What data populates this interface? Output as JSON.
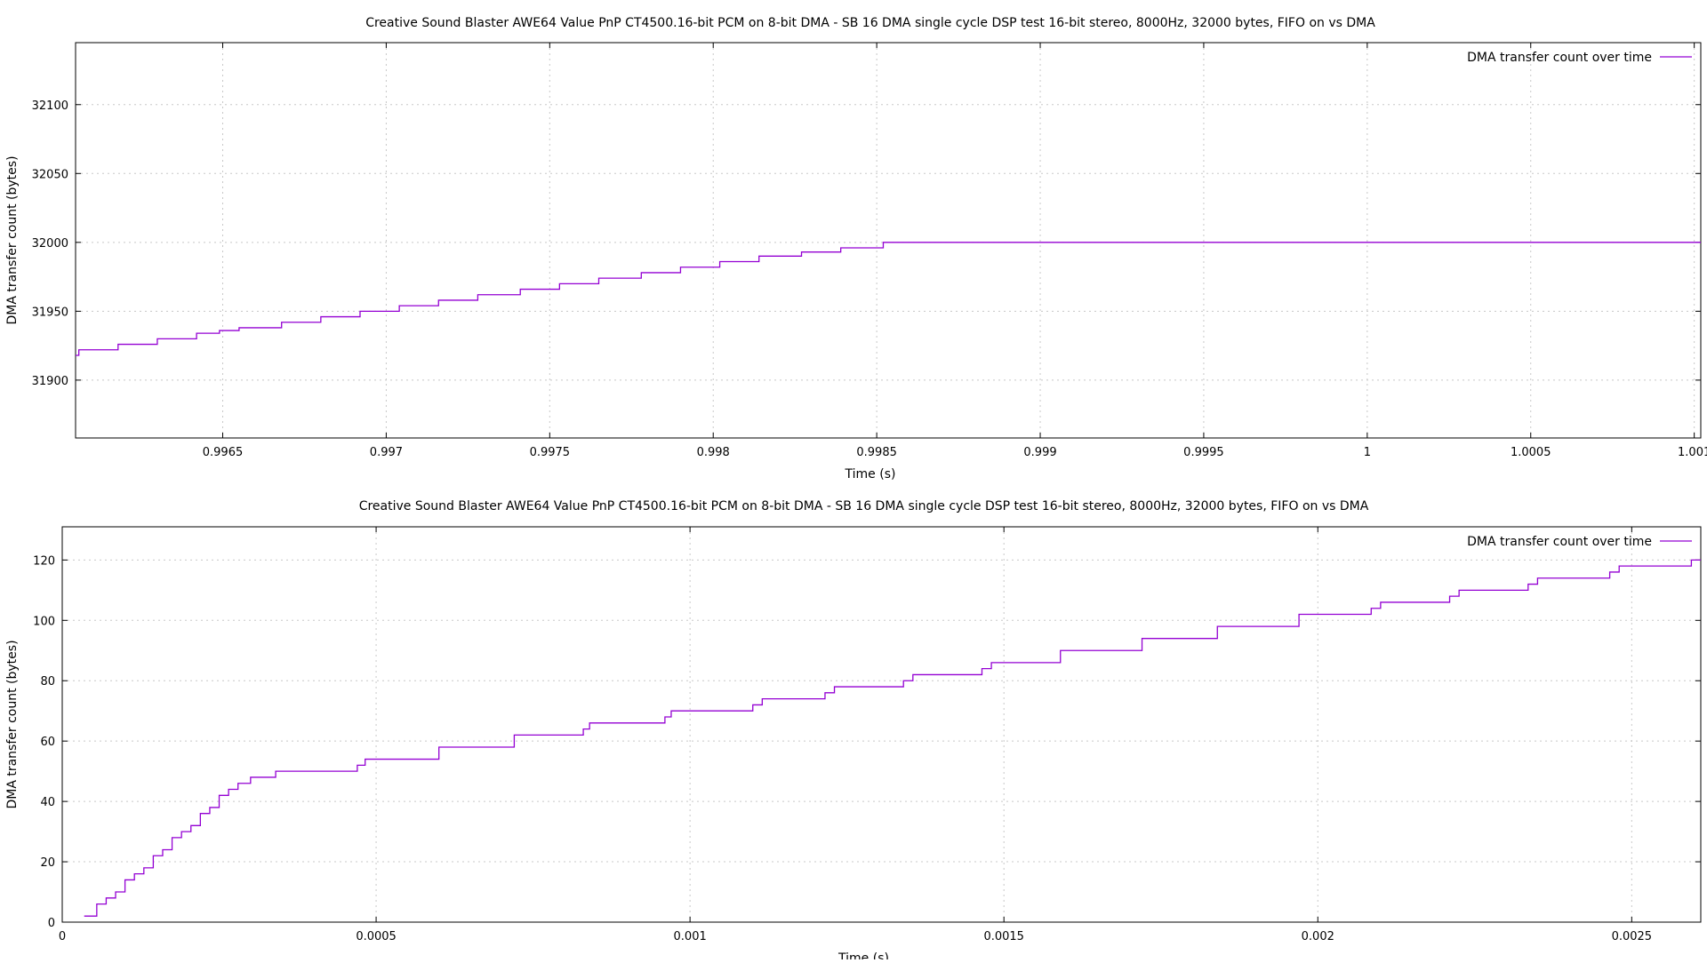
{
  "chart_data": [
    {
      "type": "line",
      "title": "Creative Sound Blaster AWE64 Value PnP CT4500.16-bit PCM on 8-bit DMA - SB 16 DMA single cycle DSP test 16-bit stereo, 8000Hz, 32000 bytes, FIFO on vs DMA",
      "xlabel": "Time (s)",
      "ylabel": "DMA transfer count (bytes)",
      "xlim": [
        0.99605,
        1.00102
      ],
      "ylim": [
        31858,
        32145
      ],
      "xticks": [
        0.9965,
        0.997,
        0.9975,
        0.998,
        0.9985,
        0.999,
        0.9995,
        1,
        1.0005,
        1.001
      ],
      "xtick_labels": [
        "0.9965",
        "0.997",
        "0.9975",
        "0.998",
        "0.9985",
        "0.999",
        "0.9995",
        "1",
        "1.0005",
        "1.001"
      ],
      "yticks": [
        31900,
        31950,
        32000,
        32050,
        32100
      ],
      "ytick_labels": [
        "31900",
        "31950",
        "32000",
        "32050",
        "32100"
      ],
      "grid": true,
      "legend_position": "top-right",
      "series": [
        {
          "name": "DMA transfer count over time",
          "color": "#9400d3",
          "step": true,
          "x": [
            0.99605,
            0.99606,
            0.99618,
            0.9963,
            0.99642,
            0.99649,
            0.99655,
            0.99668,
            0.9968,
            0.99692,
            0.99704,
            0.99716,
            0.99728,
            0.99741,
            0.99753,
            0.99765,
            0.99778,
            0.9979,
            0.99802,
            0.99814,
            0.99827,
            0.99839,
            0.99852,
            1.00102
          ],
          "y": [
            31918,
            31922,
            31926,
            31930,
            31934,
            31936,
            31938,
            31942,
            31946,
            31950,
            31954,
            31958,
            31962,
            31966,
            31970,
            31974,
            31978,
            31982,
            31986,
            31990,
            31993,
            31996,
            32000,
            32000
          ]
        }
      ]
    },
    {
      "type": "line",
      "title": "Creative Sound Blaster AWE64 Value PnP CT4500.16-bit PCM on 8-bit DMA - SB 16 DMA single cycle DSP test 16-bit stereo, 8000Hz, 32000 bytes, FIFO on vs DMA",
      "xlabel": "Time (s)",
      "ylabel": "DMA transfer count (bytes)",
      "xlim": [
        0,
        0.00261
      ],
      "ylim": [
        0,
        131
      ],
      "xticks": [
        0,
        0.0005,
        0.001,
        0.0015,
        0.002,
        0.0025
      ],
      "xtick_labels": [
        "0",
        "0.0005",
        "0.001",
        "0.0015",
        "0.002",
        "0.0025"
      ],
      "yticks": [
        0,
        20,
        40,
        60,
        80,
        100,
        120
      ],
      "ytick_labels": [
        "0",
        "20",
        "40",
        "60",
        "80",
        "100",
        "120"
      ],
      "grid": true,
      "legend_position": "top-right",
      "series": [
        {
          "name": "DMA transfer count over time",
          "color": "#9400d3",
          "step": true,
          "x": [
            3.5e-05,
            5.5e-05,
            7e-05,
            8.5e-05,
            0.0001,
            0.000115,
            0.00013,
            0.000145,
            0.00016,
            0.000175,
            0.00019,
            0.000205,
            0.00022,
            0.000235,
            0.00025,
            0.000265,
            0.00028,
            0.0003,
            0.00034,
            0.00036,
            0.00047,
            0.0004825,
            0.0006,
            0.00072,
            0.00083,
            0.00084,
            0.00096,
            0.00097,
            0.001,
            0.0011,
            0.001115,
            0.001215,
            0.00123,
            0.00134,
            0.001355,
            0.001465,
            0.00148,
            0.00159,
            0.00172,
            0.00184,
            0.00197,
            0.002085,
            0.0021,
            0.00221,
            0.002225,
            0.002335,
            0.00235,
            0.002465,
            0.00248,
            0.002595,
            0.00261
          ],
          "y": [
            2,
            6,
            8,
            10,
            14,
            16,
            18,
            22,
            24,
            28,
            30,
            32,
            36,
            38,
            42,
            44,
            46,
            48,
            50,
            50,
            52,
            54,
            58,
            62,
            64,
            66,
            68,
            70,
            70,
            72,
            74,
            76,
            78,
            80,
            82,
            84,
            86,
            90,
            94,
            98,
            102,
            104,
            106,
            108,
            110,
            112,
            114,
            116,
            118,
            120,
            120
          ]
        }
      ]
    }
  ]
}
